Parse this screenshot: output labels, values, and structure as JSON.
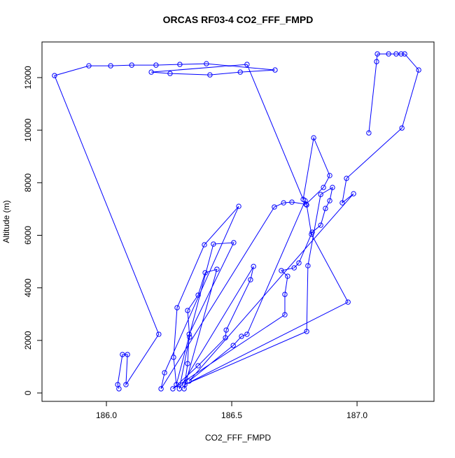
{
  "chart_data": {
    "type": "line",
    "title": "ORCAS RF03-4 CO2_FFF_FMPD",
    "x_label": "CO2_FFF_FMPD",
    "y_label": "Altitude (m)",
    "x": [
      186.05,
      186.045,
      186.064,
      186.084,
      186.078,
      186.209,
      185.793,
      185.93,
      186.017,
      186.101,
      186.198,
      186.293,
      186.399,
      186.673,
      186.534,
      186.413,
      186.254,
      186.179,
      186.561,
      186.785,
      186.827,
      186.891,
      186.866,
      186.796,
      186.74,
      186.707,
      186.67,
      186.218,
      186.232,
      186.528,
      186.391,
      186.282,
      186.268,
      186.279,
      186.427,
      186.508,
      186.33,
      186.324,
      186.31,
      186.441,
      186.394,
      186.366,
      186.324,
      186.332,
      186.291,
      186.587,
      186.575,
      186.478,
      186.475,
      186.366,
      186.265,
      186.712,
      186.712,
      186.723,
      186.698,
      186.749,
      186.768,
      186.821,
      186.855,
      186.874,
      186.891,
      186.902,
      186.855,
      186.804,
      186.799,
      186.313,
      186.964,
      186.818,
      186.799,
      186.793,
      186.561,
      186.539,
      186.506,
      186.33,
      186.986,
      186.941,
      186.958,
      187.179,
      187.246,
      187.19,
      187.176,
      187.156,
      187.126,
      187.081,
      187.078,
      187.047
    ],
    "series": [
      {
        "color": "#0000ff",
        "values": [
          160,
          319,
          1463,
          1463,
          319,
          2234,
          12076,
          12449,
          12449,
          12475,
          12475,
          12502,
          12529,
          12289,
          12209,
          12103,
          12156,
          12209,
          12502,
          7368,
          9709,
          8273,
          7820,
          7182,
          7262,
          7235,
          7076,
          160,
          771,
          7102,
          5639,
          3245,
          1357,
          319,
          5666,
          5719,
          2234,
          1117,
          160,
          4708,
          4575,
          3724,
          3139,
          2128,
          160,
          4815,
          4309,
          2394,
          2101,
          1037,
          160,
          2979,
          3751,
          4442,
          4655,
          4761,
          4948,
          6118,
          6384,
          7022,
          7315,
          7820,
          7554,
          4841,
          2341,
          319,
          3458,
          6038,
          7155,
          7315,
          2234,
          2155,
          1809,
          452,
          7581,
          7235,
          8166,
          10081,
          12289,
          12901,
          12901,
          12901,
          12901,
          12901,
          12608,
          9895
        ]
      }
    ],
    "xlim": [
      185.743,
      187.307
    ],
    "ylim": [
      -319,
      13356
    ],
    "xticks": [
      {
        "value": 186,
        "label": "186.0"
      },
      186.5,
      {
        "value": 187,
        "label": "187.0"
      }
    ],
    "yticks": [
      0,
      2000,
      4000,
      6000,
      8000,
      10000,
      12000
    ]
  }
}
